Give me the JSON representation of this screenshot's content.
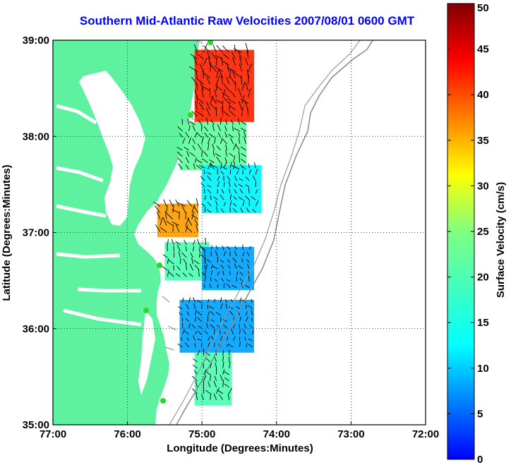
{
  "chart_data": {
    "type": "heatmap",
    "title": "Southern Mid-Atlantic Raw Velocities 2007/08/01 0600 GMT",
    "xlabel": "Longitude (Degrees:Minutes)",
    "ylabel": "Latitude (Degrees:Minutes)",
    "x_ticks": [
      "77:00",
      "76:00",
      "75:00",
      "74:00",
      "73:00",
      "72:00"
    ],
    "x_tick_values": [
      -77,
      -76,
      -75,
      -74,
      -73,
      -72
    ],
    "y_ticks": [
      "39:00",
      "38:00",
      "37:00",
      "36:00",
      "35:00"
    ],
    "y_tick_values": [
      39,
      38,
      37,
      36,
      35
    ],
    "xlim": [
      -77,
      -72
    ],
    "ylim": [
      35,
      39
    ],
    "grid": "dotted",
    "colorbar": {
      "label": "Surface Velocity (cm/s)",
      "ticks": [
        "50",
        "45",
        "40",
        "35",
        "30",
        "25",
        "20",
        "15",
        "10",
        "5",
        "0"
      ],
      "range": [
        0,
        50
      ],
      "colormap": "jet"
    },
    "land_color": "#5ef2a0",
    "vector_color": "#000000",
    "coastline_color": "#808080",
    "regions": [
      {
        "lon_range": [
          -75.1,
          -74.3
        ],
        "lat_range": [
          38.15,
          38.9
        ],
        "speed": 42
      },
      {
        "lon_range": [
          -75.3,
          -74.4
        ],
        "lat_range": [
          37.65,
          38.15
        ],
        "speed": 22
      },
      {
        "lon_range": [
          -75.6,
          -75.05
        ],
        "lat_range": [
          36.95,
          37.3
        ],
        "speed": 36
      },
      {
        "lon_range": [
          -75.0,
          -74.2
        ],
        "lat_range": [
          37.2,
          37.7
        ],
        "speed": 12
      },
      {
        "lon_range": [
          -75.5,
          -74.9
        ],
        "lat_range": [
          36.5,
          36.9
        ],
        "speed": 20
      },
      {
        "lon_range": [
          -75.0,
          -74.3
        ],
        "lat_range": [
          36.4,
          36.85
        ],
        "speed": 8
      },
      {
        "lon_range": [
          -75.3,
          -74.3
        ],
        "lat_range": [
          35.75,
          36.3
        ],
        "speed": 8
      },
      {
        "lon_range": [
          -75.1,
          -74.6
        ],
        "lat_range": [
          35.2,
          35.75
        ],
        "speed": 20
      }
    ]
  }
}
